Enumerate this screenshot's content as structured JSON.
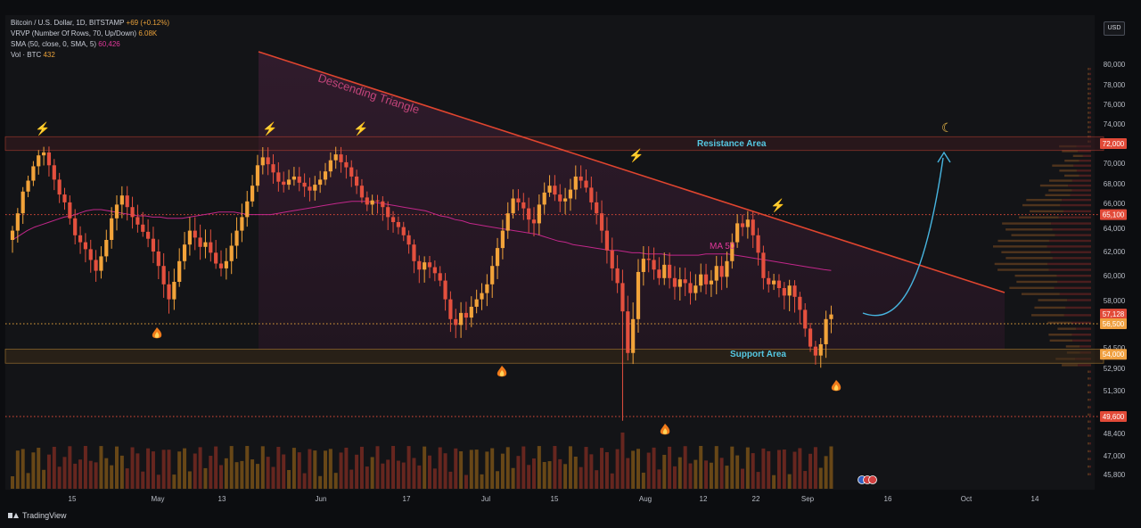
{
  "header": {
    "symbol_line": "Bitcoin / U.S. Dollar, 1D, BITSTAMP",
    "change": "+69 (+0.12%)",
    "vrvp_line": "VRVP (Number Of Rows, 70, Up/Down)",
    "vrvp_value": "6.08K",
    "sma_line": "SMA (50, close, 0, SMA, 5)",
    "sma_value": "60,426",
    "vol_line": "Vol · BTC",
    "vol_value": "432"
  },
  "currency_button": "USD",
  "brand": "TradingView",
  "colors": {
    "up": "#f2a33a",
    "down": "#e4503e",
    "sma": "#c2278a",
    "trendline": "#e0452f",
    "resistance": "#e24a38",
    "support": "#e3a23c",
    "arrow": "#47b5e0",
    "label_text": "#55c8e3"
  },
  "annotations": {
    "triangle_label": "Descending Triangle",
    "resistance_label": "Resistance Area",
    "support_label": "Support Area",
    "ma_label": "MA 50"
  },
  "chart_data": {
    "type": "candlestick",
    "x_ticks": [
      "15",
      "May",
      "13",
      "Jun",
      "17",
      "Jul",
      "15",
      "Aug",
      "12",
      "22",
      "Sep",
      "16",
      "Oct",
      "14"
    ],
    "y_ticks": [
      80000,
      78000,
      76000,
      74000,
      72000,
      70000,
      68000,
      66000,
      64000,
      62000,
      60000,
      58000,
      56500,
      54500,
      52900,
      51300,
      49600,
      48400,
      47000,
      45800
    ],
    "y_tick_labels": [
      "80,000",
      "78,000",
      "76,000",
      "74,000",
      "72,000",
      "70,000",
      "68,000",
      "66,000",
      "64,000",
      "62,000",
      "60,000",
      "58,000",
      "56,500",
      "54,500",
      "52,900",
      "51,300",
      "49,600",
      "48,400",
      "47,000",
      "45,800"
    ],
    "price_tags": [
      {
        "label": "72,000",
        "value": 72000,
        "color": "#e24a38"
      },
      {
        "label": "65,100",
        "value": 65100,
        "color": "#e24a38"
      },
      {
        "label": "57,128",
        "value": 57128,
        "color": "#e24a38"
      },
      {
        "label": "56,500",
        "value": 56500,
        "color": "#f0a040"
      },
      {
        "label": "54,000",
        "value": 54000,
        "color": "#f0a040"
      },
      {
        "label": "49,600",
        "value": 49600,
        "color": "#e24a38"
      }
    ],
    "resistance_zone": [
      71300,
      72700
    ],
    "support_zone": [
      53300,
      54400
    ],
    "dotted_levels": [
      65100,
      56500,
      49600
    ],
    "close_series": [
      63800,
      65200,
      67200,
      68300,
      69700,
      70800,
      71100,
      69800,
      68400,
      66900,
      66100,
      64800,
      63400,
      62800,
      62200,
      61300,
      60400,
      61600,
      63000,
      64800,
      65900,
      66800,
      65700,
      64900,
      64300,
      63700,
      63100,
      62000,
      60800,
      59300,
      58100,
      59500,
      61200,
      62600,
      63800,
      63200,
      62400,
      62800,
      61900,
      61000,
      60600,
      61200,
      62500,
      63800,
      64900,
      66200,
      67800,
      69800,
      70600,
      69900,
      69100,
      68200,
      67900,
      68400,
      68700,
      68100,
      67700,
      67300,
      67900,
      68400,
      69200,
      70300,
      70900,
      70100,
      69600,
      68700,
      67800,
      66600,
      65900,
      66300,
      66200,
      65700,
      64900,
      64500,
      64100,
      63400,
      62600,
      61200,
      60500,
      61100,
      60700,
      60200,
      59600,
      58100,
      56800,
      56400,
      57200,
      56900,
      57600,
      58100,
      58600,
      59300,
      60800,
      62300,
      63800,
      65200,
      66500,
      66100,
      65600,
      64700,
      64400,
      65900,
      67100,
      67800,
      66900,
      66200,
      66500,
      67400,
      68700,
      68300,
      67600,
      66100,
      65200,
      63800,
      62100,
      60600,
      59400,
      57300,
      54100,
      56800,
      60300,
      61400,
      61300,
      60500,
      59800,
      60900,
      59800,
      59100,
      59700,
      59400,
      58600,
      59200,
      60100,
      59300,
      59600,
      60800,
      59900,
      61200,
      62800,
      64400,
      64100,
      64700,
      63400,
      61900,
      59800,
      59300,
      59600,
      59000,
      58400,
      59200,
      58300,
      57400,
      56100,
      54600,
      53900,
      54800,
      56800,
      57100
    ],
    "sma50_series": [
      63000,
      63400,
      63800,
      64100,
      64300,
      64500,
      64700,
      64900,
      65000,
      65200,
      65400,
      65500,
      65500,
      65400,
      65300,
      65200,
      65100,
      65000,
      65000,
      64900,
      64900,
      64800,
      64800,
      64800,
      64900,
      65000,
      65100,
      65200,
      65300,
      65300,
      65300,
      65200,
      65100,
      65100,
      65100,
      65100,
      65200,
      65300,
      65400,
      65500,
      65600,
      65700,
      65800,
      65900,
      66000,
      66100,
      66200,
      66200,
      66200,
      66100,
      66000,
      65900,
      65800,
      65700,
      65600,
      65500,
      65400,
      65200,
      65000,
      64900,
      64700,
      64600,
      64400,
      64300,
      64200,
      64100,
      64000,
      63900,
      63800,
      63700,
      63600,
      63500,
      63300,
      63100,
      62900,
      62800,
      62600,
      62500,
      62400,
      62300,
      62200,
      62100,
      62100,
      62000,
      61900,
      61900,
      61800,
      61800,
      61800,
      61700,
      61700,
      61700,
      61700,
      61700,
      61800,
      61800,
      61800,
      61800,
      61700,
      61600,
      61500,
      61400,
      61300,
      61200,
      61100,
      61000,
      60900,
      60800,
      60700,
      60600,
      60500,
      60426
    ]
  }
}
